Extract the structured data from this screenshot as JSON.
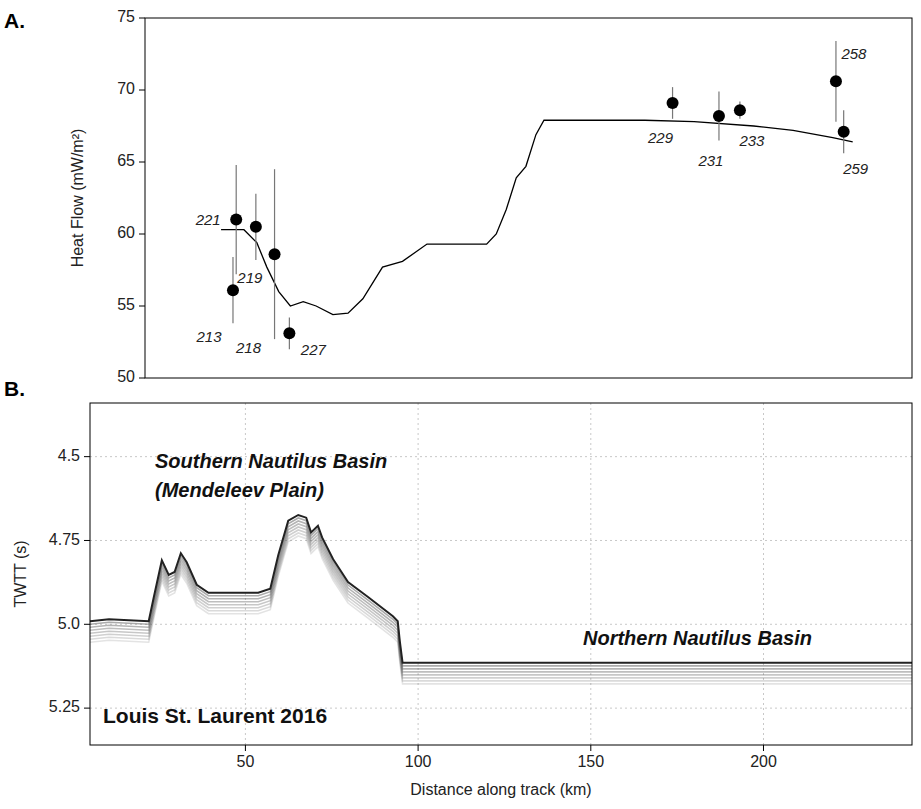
{
  "chart_data": [
    {
      "panel_label": "A.",
      "type": "line",
      "y_label": "Heat Flow (mW/m²)",
      "xlim": [
        5,
        243
      ],
      "ylim": [
        50,
        75
      ],
      "yticks": [
        50,
        55,
        60,
        65,
        70,
        75
      ],
      "tick_labels": "y",
      "grid": false,
      "series": [
        {
          "type": "line",
          "color": "#000000",
          "line_style": "solid",
          "x": [
            28.6,
            35.7,
            39.7,
            42.8,
            46.5,
            50.1,
            54.1,
            58.1,
            63.3,
            68.0,
            72.6,
            78.7,
            84.9,
            92.5,
            111.0,
            114.0,
            117.1,
            120.2,
            123.2,
            126.3,
            128.8,
            160.1,
            175.4,
            193.9,
            206.1,
            218.4,
            224.6
          ],
          "values": [
            60.3,
            60.3,
            59.4,
            57.7,
            56.0,
            55.0,
            55.3,
            55.0,
            54.4,
            54.5,
            55.5,
            57.7,
            58.1,
            59.3,
            59.3,
            60.0,
            61.7,
            63.9,
            64.7,
            66.9,
            67.9,
            67.9,
            67.8,
            67.5,
            67.2,
            66.7,
            66.4
          ]
        },
        {
          "type": "scatter",
          "color": "#000000",
          "marker": "circle",
          "x": [
            32.3,
            33.3,
            39.4,
            45.2,
            49.8,
            168.7,
            183.1,
            189.6,
            219.4,
            221.8
          ],
          "values": [
            56.1,
            61.0,
            60.5,
            58.6,
            53.1,
            69.1,
            68.2,
            68.6,
            70.6,
            67.1
          ],
          "errors": [
            2.3,
            3.8,
            2.3,
            5.9,
            1.1,
            1.1,
            1.7,
            0.6,
            2.8,
            1.5
          ],
          "point_labels": [
            "213",
            "221",
            "219",
            "218",
            "227",
            "229",
            "231",
            "233",
            "258",
            "259"
          ]
        }
      ]
    },
    {
      "panel_label": "B.",
      "type": "line",
      "x_label": "Distance along track (km)",
      "y_label": "TWTT (s)",
      "xlim": [
        5,
        243
      ],
      "ylim": [
        5.36,
        4.34
      ],
      "xticks": [
        50,
        100,
        150,
        200
      ],
      "yticks": [
        4.5,
        4.75,
        {
          "value": 5,
          "label": "5.0"
        },
        5.25
      ],
      "grid": true,
      "annotations": [
        "Southern Nautilus Basin",
        "(Mendeleev Plain)",
        "Northern Nautilus Basin",
        "Louis St. Laurent 2016"
      ],
      "series": [
        {
          "color": "#222222",
          "line_style": "solid",
          "x": [
            5,
            10.5,
            22.0,
            23.5,
            25.8,
            27.8,
            29.5,
            31.3,
            33.0,
            35.9,
            39.3,
            53.7,
            57.2,
            59.5,
            62.4,
            65.3,
            67.6,
            69.0,
            71.0,
            72.2,
            75.4,
            79.7,
            85.4,
            92.7,
            94.1,
            94.7,
            95.5,
            243
          ],
          "values": [
            4.991,
            4.985,
            4.991,
            4.918,
            4.809,
            4.853,
            4.844,
            4.788,
            4.815,
            4.882,
            4.906,
            4.906,
            4.894,
            4.794,
            4.691,
            4.674,
            4.682,
            4.726,
            4.706,
            4.741,
            4.806,
            4.874,
            4.918,
            4.976,
            4.991,
            5.05,
            5.115,
            5.115
          ]
        }
      ]
    }
  ]
}
